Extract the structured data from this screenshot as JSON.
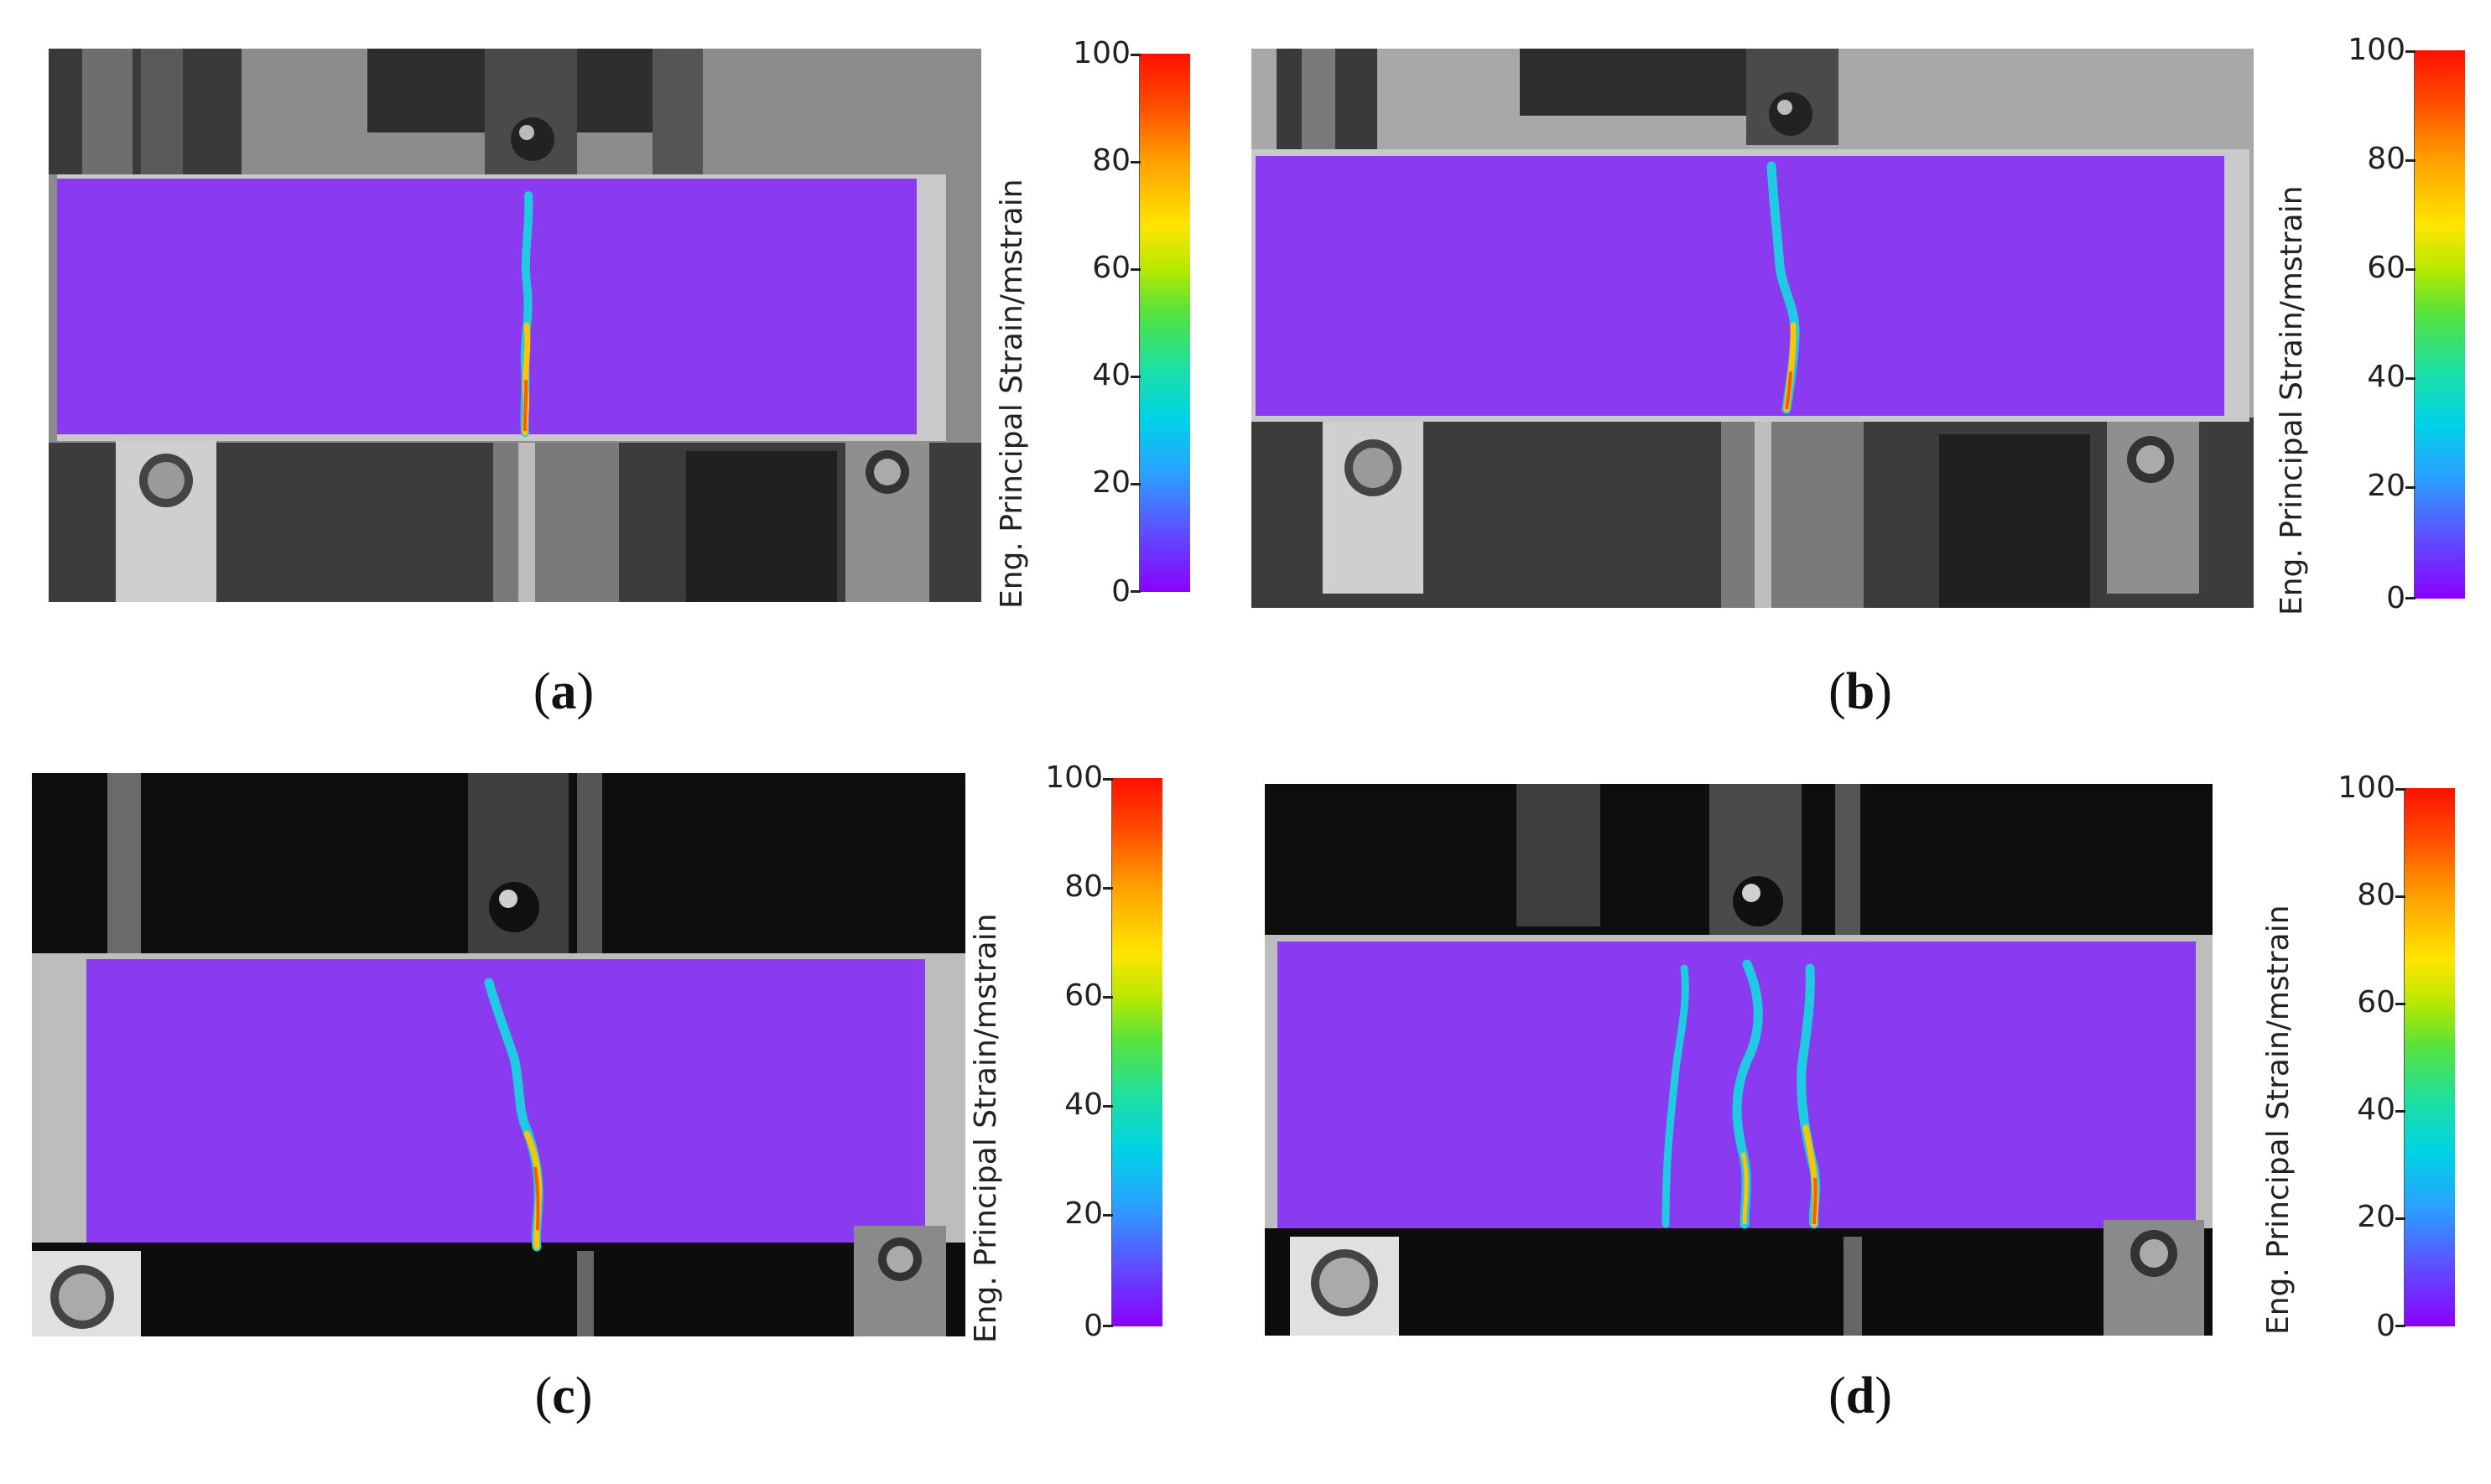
{
  "colorbar": {
    "label": "Eng. Principal Strain/mstrain",
    "ticks": [
      "0",
      "20",
      "40",
      "60",
      "80",
      "100"
    ],
    "min": 0,
    "max": 100,
    "colormap": [
      "#8a00ff",
      "#2aa0ff",
      "#00d2e6",
      "#56e23c",
      "#ffe600",
      "#ffa000",
      "#ff1000"
    ]
  },
  "panels": [
    {
      "id": "a",
      "caption_open": "(",
      "caption_letter": "a",
      "caption_close": ")",
      "crack_count": 1
    },
    {
      "id": "b",
      "caption_open": "(",
      "caption_letter": "b",
      "caption_close": ")",
      "crack_count": 1
    },
    {
      "id": "c",
      "caption_open": "(",
      "caption_letter": "c",
      "caption_close": ")",
      "crack_count": 1
    },
    {
      "id": "d",
      "caption_open": "(",
      "caption_letter": "d",
      "caption_close": ")",
      "crack_count": 3
    }
  ],
  "colors": {
    "specimen_overlay": "#8a3bf0",
    "background_light": "#9a9a9a",
    "background_dark": "#0e0e0e"
  }
}
